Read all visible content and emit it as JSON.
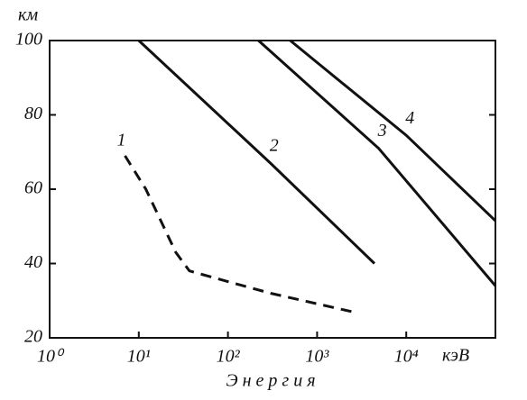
{
  "chart_data": {
    "type": "line",
    "y_unit": "км",
    "x_unit": "кэВ",
    "x_label": "Э н е р г и я",
    "x_log": true,
    "xlim": [
      1,
      100000
    ],
    "ylim": [
      20,
      100
    ],
    "xticks": [
      {
        "value": 1,
        "label": "10⁰"
      },
      {
        "value": 10,
        "label": "10¹"
      },
      {
        "value": 100,
        "label": "10²"
      },
      {
        "value": 1000,
        "label": "10³"
      },
      {
        "value": 10000,
        "label": "10⁴"
      }
    ],
    "yticks": [
      20,
      40,
      60,
      80,
      100
    ],
    "series": [
      {
        "name": "1",
        "color": "#111",
        "dashed": true,
        "x": [
          7,
          12,
          26,
          37,
          74,
          300,
          2500
        ],
        "values": [
          69,
          60,
          43,
          38,
          36,
          32,
          27
        ]
      },
      {
        "name": "2",
        "color": "#111",
        "dashed": false,
        "x": [
          10,
          300,
          4400
        ],
        "values": [
          100,
          67,
          40
        ]
      },
      {
        "name": "3",
        "color": "#111",
        "dashed": false,
        "x": [
          220,
          4900,
          100000
        ],
        "values": [
          100,
          71,
          34
        ]
      },
      {
        "name": "4",
        "color": "#111",
        "dashed": false,
        "x": [
          500,
          10000,
          100000
        ],
        "values": [
          100,
          74.5,
          51.5
        ]
      }
    ]
  }
}
